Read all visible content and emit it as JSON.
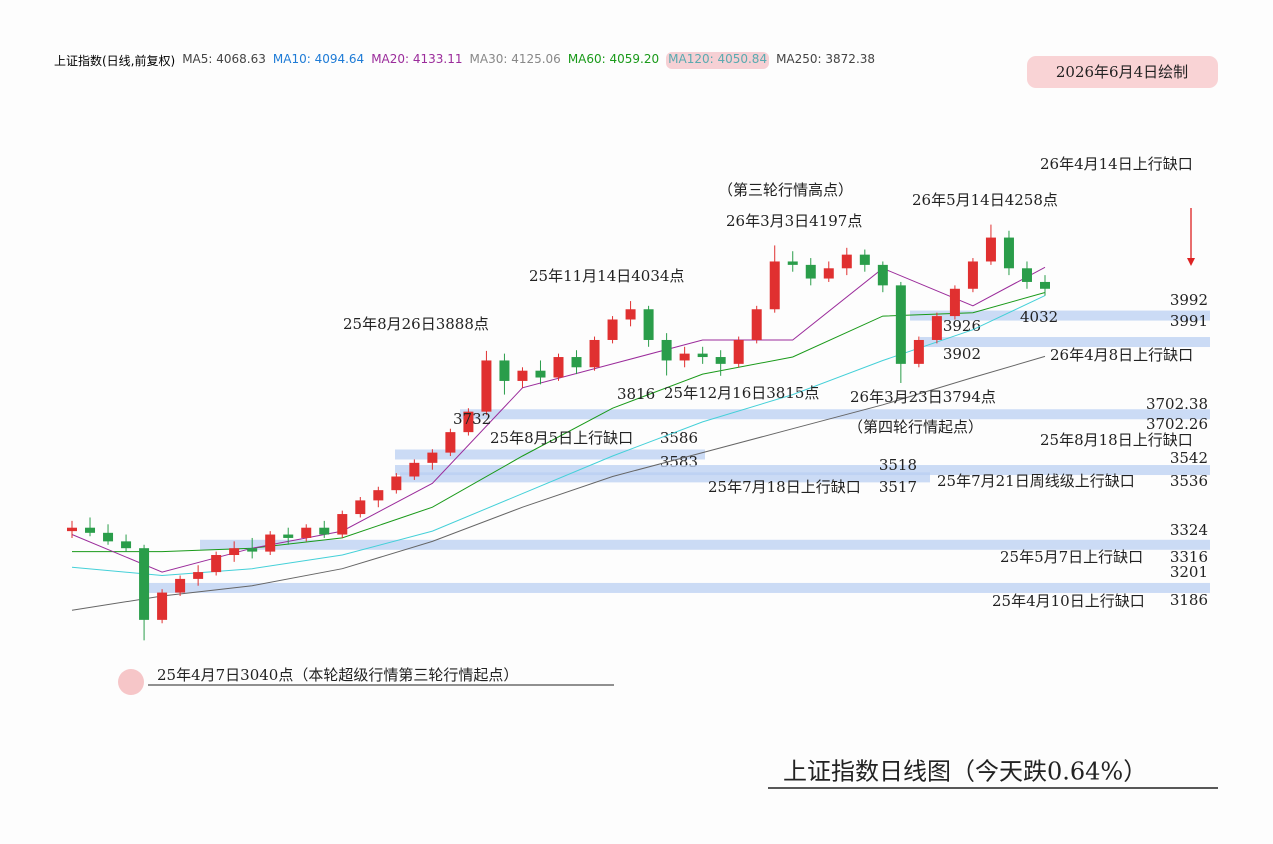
{
  "chart_data": {
    "type": "candlestick",
    "header": "上证指数(日线,前复权)",
    "legend": [
      {
        "label": "MA5: 4068.63",
        "color": "#444444"
      },
      {
        "label": "MA10: 4094.64",
        "color": "#1e7bd6"
      },
      {
        "label": "MA20: 4133.11",
        "color": "#9b2c9b"
      },
      {
        "label": "MA30: 4125.06",
        "color": "#888888"
      },
      {
        "label": "MA60: 4059.20",
        "color": "#1a9a1a"
      },
      {
        "label": "MA120: 4050.84",
        "color": "#5aaab0"
      },
      {
        "label": "MA250: 3872.38",
        "color": "#444444"
      }
    ],
    "badge": "2026年6月4日绘制",
    "title": "上证指数日线图（今天跌0.64%）",
    "up_color": "#e03030",
    "down_color": "#2a9d4a",
    "ylim": [
      3000,
      4500
    ],
    "ohlc": [
      [
        3360,
        3390,
        3340,
        3370
      ],
      [
        3370,
        3400,
        3345,
        3355
      ],
      [
        3355,
        3380,
        3320,
        3330
      ],
      [
        3330,
        3350,
        3300,
        3310
      ],
      [
        3310,
        3320,
        3040,
        3100
      ],
      [
        3100,
        3190,
        3090,
        3180
      ],
      [
        3180,
        3230,
        3170,
        3220
      ],
      [
        3220,
        3260,
        3200,
        3240
      ],
      [
        3240,
        3300,
        3230,
        3290
      ],
      [
        3290,
        3330,
        3270,
        3310
      ],
      [
        3310,
        3340,
        3280,
        3300
      ],
      [
        3300,
        3360,
        3290,
        3350
      ],
      [
        3350,
        3370,
        3320,
        3340
      ],
      [
        3340,
        3380,
        3330,
        3370
      ],
      [
        3370,
        3390,
        3340,
        3350
      ],
      [
        3350,
        3420,
        3340,
        3410
      ],
      [
        3410,
        3460,
        3400,
        3450
      ],
      [
        3450,
        3490,
        3430,
        3480
      ],
      [
        3480,
        3530,
        3470,
        3520
      ],
      [
        3520,
        3570,
        3510,
        3560
      ],
      [
        3560,
        3600,
        3540,
        3590
      ],
      [
        3590,
        3660,
        3580,
        3650
      ],
      [
        3650,
        3720,
        3640,
        3710
      ],
      [
        3710,
        3888,
        3700,
        3860
      ],
      [
        3860,
        3880,
        3760,
        3800
      ],
      [
        3800,
        3840,
        3780,
        3830
      ],
      [
        3830,
        3860,
        3790,
        3810
      ],
      [
        3810,
        3880,
        3800,
        3870
      ],
      [
        3870,
        3890,
        3820,
        3840
      ],
      [
        3840,
        3930,
        3830,
        3920
      ],
      [
        3920,
        3990,
        3910,
        3980
      ],
      [
        3980,
        4034,
        3960,
        4010
      ],
      [
        4010,
        4020,
        3900,
        3920
      ],
      [
        3920,
        3940,
        3816,
        3860
      ],
      [
        3860,
        3900,
        3840,
        3880
      ],
      [
        3880,
        3900,
        3850,
        3870
      ],
      [
        3870,
        3890,
        3815,
        3850
      ],
      [
        3850,
        3930,
        3840,
        3920
      ],
      [
        3920,
        4020,
        3910,
        4010
      ],
      [
        4010,
        4197,
        4000,
        4150
      ],
      [
        4150,
        4180,
        4120,
        4140
      ],
      [
        4140,
        4160,
        4080,
        4100
      ],
      [
        4100,
        4150,
        4090,
        4130
      ],
      [
        4130,
        4190,
        4110,
        4170
      ],
      [
        4170,
        4185,
        4120,
        4140
      ],
      [
        4140,
        4150,
        4060,
        4080
      ],
      [
        4080,
        4090,
        3794,
        3850
      ],
      [
        3850,
        3930,
        3840,
        3920
      ],
      [
        3920,
        4000,
        3910,
        3990
      ],
      [
        3990,
        4080,
        3980,
        4070
      ],
      [
        4070,
        4160,
        4060,
        4150
      ],
      [
        4150,
        4258,
        4140,
        4220
      ],
      [
        4220,
        4240,
        4110,
        4130
      ],
      [
        4130,
        4150,
        4070,
        4090
      ],
      [
        4090,
        4110,
        4050,
        4070
      ]
    ],
    "ma_index": [
      0,
      5,
      10,
      15,
      20,
      25,
      30,
      35,
      40,
      45,
      50,
      54
    ],
    "ma_series": [
      {
        "color": "#666666",
        "values": [
          3128,
          3170,
          3200,
          3250,
          3330,
          3430,
          3520,
          3590,
          3660,
          3730,
          3810,
          3872
        ]
      },
      {
        "color": "#44d0d8",
        "values": [
          3254,
          3230,
          3250,
          3290,
          3360,
          3470,
          3580,
          3680,
          3760,
          3860,
          3950,
          4050
        ]
      },
      {
        "color": "#1a9a1a",
        "values": [
          3300,
          3300,
          3310,
          3340,
          3430,
          3580,
          3720,
          3820,
          3870,
          3990,
          4000,
          4059
        ]
      },
      {
        "color": "#9b2c9b",
        "values": [
          3350,
          3240,
          3310,
          3360,
          3500,
          3780,
          3850,
          3920,
          3920,
          4130,
          4020,
          4133
        ]
      }
    ],
    "gaps": [
      {
        "high": 3992,
        "low": 3991
      },
      {
        "high": 3926,
        "low": 3902
      },
      {
        "high": 3702.38,
        "low": 3702.26
      },
      {
        "high": 3586,
        "low": 3583
      },
      {
        "high": 3542,
        "low": 3536
      },
      {
        "high": 3518,
        "low": 3517
      },
      {
        "high": 3324,
        "low": 3316
      },
      {
        "high": 3201,
        "low": 3186
      }
    ],
    "annotations": [
      "26年4月14日上行缺口",
      "（第三轮行情高点）",
      "26年3月3日4197点",
      "26年5月14日4258点",
      "25年11月14日4034点",
      "25年8月26日3888点",
      "3732",
      "3816",
      "25年12月16日3815点",
      "26年3月23日3794点",
      "（第四轮行情起点）",
      "26年4月8日上行缺口",
      "25年8月5日上行缺口",
      "25年8月18日上行缺口",
      "25年7月18日上行缺口",
      "25年7月21日周线级上行缺口",
      "25年5月7日上行缺口",
      "25年4月10日上行缺口",
      "4032",
      "25年4月7日3040点（本轮超级行情第三轮行情起点）"
    ]
  }
}
